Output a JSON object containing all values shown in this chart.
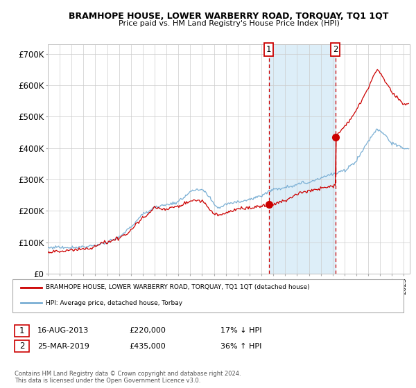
{
  "title": "BRAMHOPE HOUSE, LOWER WARBERRY ROAD, TORQUAY, TQ1 1QT",
  "subtitle": "Price paid vs. HM Land Registry's House Price Index (HPI)",
  "legend_line1": "BRAMHOPE HOUSE, LOWER WARBERRY ROAD, TORQUAY, TQ1 1QT (detached house)",
  "legend_line2": "HPI: Average price, detached house, Torbay",
  "purchase1_date": "16-AUG-2013",
  "purchase1_price": 220000,
  "purchase1_label": "17% ↓ HPI",
  "purchase1_x": 2013.62,
  "purchase2_date": "25-MAR-2019",
  "purchase2_price": 435000,
  "purchase2_label": "36% ↑ HPI",
  "purchase2_x": 2019.23,
  "footnote": "Contains HM Land Registry data © Crown copyright and database right 2024.\nThis data is licensed under the Open Government Licence v3.0.",
  "hpi_color": "#7aafd4",
  "property_color": "#cc0000",
  "shading_color": "#ddeef8",
  "background_color": "#ffffff",
  "grid_color": "#cccccc",
  "ylim": [
    0,
    730000
  ],
  "xlim": [
    1995.0,
    2025.5
  ],
  "yticks": [
    0,
    100000,
    200000,
    300000,
    400000,
    500000,
    600000,
    700000
  ],
  "ytick_labels": [
    "£0",
    "£100K",
    "£200K",
    "£300K",
    "£400K",
    "£500K",
    "£600K",
    "£700K"
  ]
}
